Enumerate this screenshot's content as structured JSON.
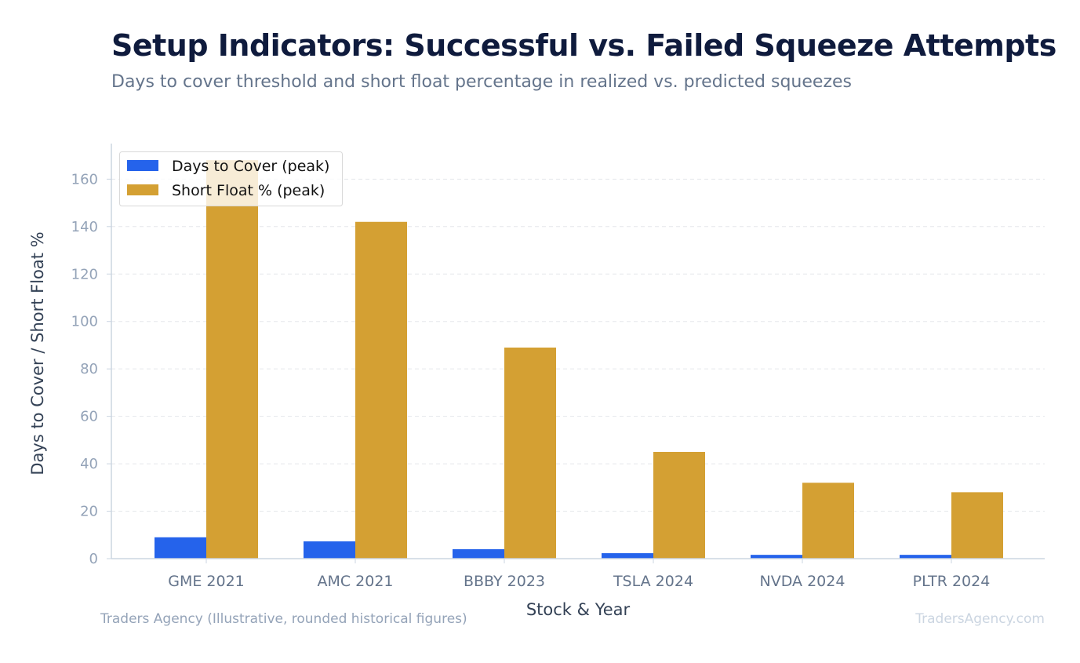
{
  "chart_data": {
    "type": "bar",
    "title": "Setup Indicators: Successful vs. Failed Squeeze Attempts",
    "subtitle": "Days to cover threshold and short float percentage in realized vs. predicted squeezes",
    "xlabel": "Stock & Year",
    "ylabel": "Days to Cover / Short Float %",
    "categories": [
      "GME 2021",
      "AMC 2021",
      "BBBY 2023",
      "TSLA 2024",
      "NVDA 2024",
      "PLTR 2024"
    ],
    "series": [
      {
        "name": "Days to Cover (peak)",
        "color": "#2563eb",
        "values": [
          9,
          7.3,
          4,
          2.3,
          1.6,
          1.6
        ]
      },
      {
        "name": "Short Float % (peak)",
        "color": "#d4a033",
        "values": [
          168,
          142,
          89,
          45,
          32,
          28
        ]
      }
    ],
    "ylim": [
      0,
      175
    ],
    "yticks": [
      0,
      20,
      40,
      60,
      80,
      100,
      120,
      140,
      160
    ],
    "grid": true,
    "legend_position": "top-left",
    "source": "Traders Agency (Illustrative, rounded historical figures)",
    "brand": "TradersAgency.com"
  }
}
